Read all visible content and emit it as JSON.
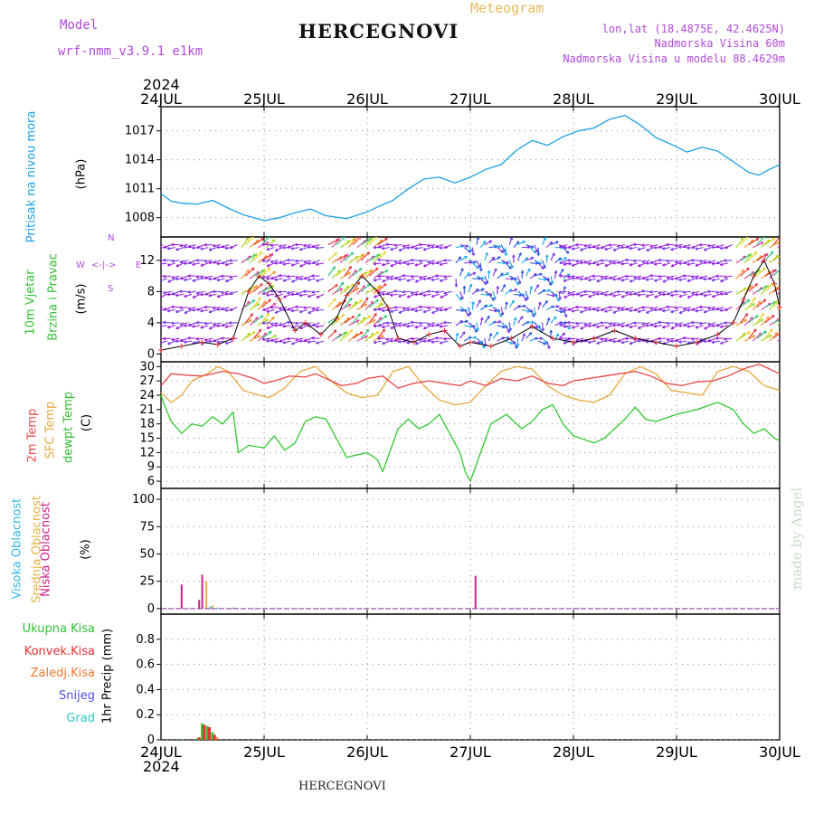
{
  "header": {
    "title": "HERCEGNOVI",
    "model_label": "Model",
    "model_name": "wrf-nmm_v3.9.1 e1km",
    "meteogram": "Meteogram",
    "lonlat": "lon,lat (18.4875E, 42.4625N)",
    "altitude": "Nadmorska Visina 60m",
    "model_altitude": "Nadmorska Visina u modelu 88.4629m"
  },
  "footer": {
    "location": "HERCEGNOVI",
    "credit": "made by Angel"
  },
  "time_axis": {
    "year": "2024",
    "days": [
      "24JUL",
      "25JUL",
      "26JUL",
      "27JUL",
      "28JUL",
      "29JUL",
      "30JUL"
    ]
  },
  "panels": {
    "pressure": {
      "label": "Pritisak na nivou mora",
      "unit": "(hPa)"
    },
    "wind": {
      "label1": "10m Vjetar",
      "label2": "Brzina i Pravac",
      "unit": "(m/s)",
      "compass": {
        "n": "N",
        "w": "W",
        "e": "E",
        "s": "S",
        "arrows": "<-|->"
      }
    },
    "temp": {
      "label1": "2m Temp",
      "label2": "SFC Temp",
      "label3": "dewpt Temp",
      "unit": "(C)"
    },
    "cloud": {
      "label1": "Visoka Oblacnost",
      "label2": "Srednja Oblacnost",
      "label3": "Niska Oblacnost",
      "unit": "(%)"
    },
    "precip": {
      "unit": "1hr Precip (mm)",
      "legend": [
        "Ukupna Kisa",
        "Konvek.Kisa",
        "Zaledj.Kisa",
        "Snijeg",
        "Grad"
      ]
    }
  },
  "colors": {
    "pressure": "#1ca0e6",
    "temp2m": "#e84848",
    "sfc": "#e8a840",
    "dewpt": "#30c830",
    "high_cloud": "#30b8e8",
    "mid_cloud": "#e8b040",
    "low_cloud": "#c8208a",
    "total_rain": "#30c030",
    "conv_rain": "#e83030",
    "frz_rain": "#f07830",
    "snow": "#5050e0",
    "graupel": "#30c8c8",
    "label_purple": "#b04ad8"
  },
  "chart_data": [
    {
      "type": "line",
      "name": "pressure",
      "ylim": [
        1006,
        1019.5
      ],
      "yticks": [
        1008,
        1011,
        1014,
        1017
      ],
      "xlim": [
        0,
        6
      ],
      "series": [
        {
          "name": "",
          "x": [
            0,
            0.1,
            0.2,
            0.35,
            0.5,
            0.65,
            0.8,
            1.0,
            1.15,
            1.3,
            1.45,
            1.6,
            1.8,
            2.0,
            2.1,
            2.25,
            2.4,
            2.55,
            2.7,
            2.85,
            3.0,
            3.15,
            3.3,
            3.45,
            3.6,
            3.75,
            3.9,
            4.05,
            4.2,
            4.35,
            4.5,
            4.65,
            4.8,
            4.95,
            5.1,
            5.25,
            5.4,
            5.55,
            5.7,
            5.8,
            5.9,
            6.0
          ],
          "values": [
            1010.5,
            1009.7,
            1009.5,
            1009.4,
            1009.8,
            1009.0,
            1008.3,
            1007.7,
            1008.0,
            1008.5,
            1008.9,
            1008.2,
            1007.9,
            1008.6,
            1009.1,
            1009.8,
            1011.0,
            1012.0,
            1012.2,
            1011.6,
            1012.2,
            1013.0,
            1013.5,
            1015.0,
            1016.0,
            1015.5,
            1016.4,
            1017.0,
            1017.3,
            1018.2,
            1018.6,
            1017.6,
            1016.3,
            1015.6,
            1014.8,
            1015.3,
            1014.9,
            1013.8,
            1012.7,
            1012.4,
            1013.0,
            1013.5
          ]
        }
      ]
    },
    {
      "type": "line",
      "name": "wind",
      "ylim": [
        -1,
        15
      ],
      "yticks": [
        0,
        4,
        8,
        12
      ],
      "xlim": [
        0,
        6
      ],
      "series": [
        {
          "name": "",
          "x": [
            0,
            0.2,
            0.4,
            0.55,
            0.7,
            0.85,
            0.95,
            1.05,
            1.15,
            1.3,
            1.4,
            1.55,
            1.7,
            1.8,
            1.95,
            2.1,
            2.2,
            2.3,
            2.45,
            2.6,
            2.75,
            2.9,
            3.0,
            3.2,
            3.4,
            3.6,
            3.8,
            4.0,
            4.2,
            4.4,
            4.6,
            4.8,
            5.0,
            5.2,
            5.4,
            5.55,
            5.65,
            5.75,
            5.85,
            5.95,
            6.0
          ],
          "values": [
            0.5,
            1.0,
            1.5,
            1.2,
            2.0,
            8.0,
            10.0,
            9.0,
            7.0,
            3.0,
            4.0,
            2.5,
            4.5,
            7.5,
            10.0,
            8.0,
            6.0,
            2.0,
            1.5,
            2.5,
            3.0,
            1.0,
            1.5,
            1.0,
            2.0,
            3.5,
            2.0,
            1.5,
            2.0,
            3.0,
            2.0,
            1.5,
            1.0,
            1.5,
            2.5,
            4.0,
            7.0,
            10.0,
            12.0,
            9.0,
            6.0
          ]
        }
      ]
    },
    {
      "type": "line",
      "name": "temperature",
      "ylim": [
        4.5,
        31
      ],
      "yticks": [
        6,
        9,
        12,
        15,
        18,
        21,
        24,
        27,
        30
      ],
      "xlim": [
        0,
        6
      ],
      "series": [
        {
          "name": "2m Temp",
          "x": [
            0,
            0.1,
            0.25,
            0.4,
            0.5,
            0.6,
            0.75,
            0.9,
            1.0,
            1.1,
            1.25,
            1.4,
            1.5,
            1.6,
            1.75,
            1.9,
            2.0,
            2.15,
            2.3,
            2.45,
            2.6,
            2.75,
            2.9,
            3.0,
            3.15,
            3.3,
            3.45,
            3.6,
            3.75,
            3.9,
            4.0,
            4.15,
            4.3,
            4.45,
            4.6,
            4.75,
            4.9,
            5.05,
            5.2,
            5.35,
            5.5,
            5.65,
            5.8,
            5.9,
            6.0
          ],
          "values": [
            26,
            28.5,
            28.2,
            28.0,
            28.5,
            29.0,
            28.5,
            27.5,
            26.5,
            27.0,
            28.0,
            27.8,
            28.5,
            27.5,
            26.0,
            26.5,
            27.5,
            28.0,
            25.5,
            26.5,
            27.0,
            26.5,
            26.0,
            27.0,
            26.0,
            27.5,
            27.0,
            28.0,
            26.5,
            26.0,
            27.0,
            27.5,
            28.0,
            28.5,
            29.0,
            28.0,
            26.5,
            26.0,
            26.8,
            27.0,
            28.0,
            29.5,
            30.5,
            29.5,
            28.5
          ]
        },
        {
          "name": "SFC Temp",
          "x": [
            0,
            0.1,
            0.2,
            0.3,
            0.45,
            0.55,
            0.65,
            0.8,
            0.95,
            1.05,
            1.2,
            1.35,
            1.5,
            1.65,
            1.8,
            1.95,
            2.1,
            2.25,
            2.4,
            2.55,
            2.7,
            2.85,
            3.0,
            3.15,
            3.3,
            3.45,
            3.6,
            3.75,
            3.9,
            4.05,
            4.2,
            4.35,
            4.5,
            4.65,
            4.8,
            4.95,
            5.1,
            5.25,
            5.4,
            5.55,
            5.7,
            5.85,
            6.0
          ],
          "values": [
            24.5,
            22.5,
            24.0,
            27.0,
            28.5,
            30.0,
            29.0,
            25.0,
            24.0,
            23.5,
            25.5,
            29.0,
            30.0,
            27.0,
            24.5,
            23.5,
            24.0,
            29.0,
            30.0,
            26.0,
            23.0,
            22.0,
            22.5,
            26.0,
            29.0,
            30.0,
            29.5,
            26.0,
            24.0,
            23.0,
            22.5,
            24.0,
            28.5,
            30.0,
            28.5,
            25.0,
            24.5,
            24.0,
            29.0,
            30.0,
            29.0,
            26.0,
            25.0
          ]
        },
        {
          "name": "dewpt Temp",
          "x": [
            0,
            0.05,
            0.1,
            0.2,
            0.3,
            0.4,
            0.5,
            0.6,
            0.7,
            0.75,
            0.85,
            1.0,
            1.1,
            1.2,
            1.3,
            1.4,
            1.5,
            1.6,
            1.7,
            1.8,
            1.9,
            2.0,
            2.1,
            2.15,
            2.2,
            2.3,
            2.4,
            2.5,
            2.6,
            2.7,
            2.8,
            2.9,
            2.95,
            3.0,
            3.1,
            3.2,
            3.35,
            3.5,
            3.6,
            3.7,
            3.8,
            3.9,
            4.0,
            4.2,
            4.3,
            4.4,
            4.5,
            4.6,
            4.7,
            4.8,
            5.0,
            5.2,
            5.4,
            5.55,
            5.65,
            5.75,
            5.85,
            5.95,
            6.0
          ],
          "values": [
            24.0,
            21.0,
            18.5,
            16.0,
            18.0,
            17.5,
            19.5,
            18.0,
            20.5,
            12.0,
            13.5,
            13.0,
            15.5,
            12.5,
            14.0,
            18.5,
            19.5,
            19.0,
            15.0,
            11.0,
            11.5,
            12.0,
            10.5,
            8.0,
            11.0,
            17.0,
            19.0,
            17.0,
            18.0,
            20.0,
            16.0,
            12.0,
            8.0,
            6.0,
            12.0,
            18.0,
            20.0,
            17.0,
            18.5,
            21.0,
            22.0,
            18.0,
            15.5,
            14.0,
            15.0,
            17.0,
            19.0,
            21.5,
            19.0,
            18.5,
            20.0,
            21.0,
            22.5,
            21.0,
            18.0,
            16.0,
            17.0,
            15.0,
            14.5
          ]
        }
      ]
    },
    {
      "type": "bar",
      "name": "cloud",
      "ylim": [
        -5,
        110
      ],
      "yticks": [
        0,
        25,
        50,
        75,
        100
      ],
      "xlim": [
        0,
        6
      ],
      "series": [
        {
          "name": "Niska Oblacnost",
          "x": [
            0.2,
            0.37,
            0.4,
            3.05
          ],
          "values": [
            22,
            8,
            31,
            30
          ]
        },
        {
          "name": "Srednja Oblacnost",
          "x": [
            0.44,
            0.5
          ],
          "values": [
            25,
            3
          ]
        },
        {
          "name": "Visoka Oblacnost",
          "x": [
            0.48,
            0.55,
            0.7
          ],
          "values": [
            2,
            1,
            1
          ]
        }
      ]
    },
    {
      "type": "bar",
      "name": "precip",
      "ylim": [
        0,
        1.0
      ],
      "yticks": [
        0,
        0.2,
        0.4,
        0.6,
        0.8
      ],
      "xlim": [
        0,
        6
      ],
      "series": [
        {
          "name": "Ukupna Kisa",
          "x": [
            0.2,
            0.35,
            0.4,
            0.45,
            0.5
          ],
          "values": [
            0.005,
            0.01,
            0.13,
            0.11,
            0.06
          ]
        },
        {
          "name": "Konvek.Kisa",
          "x": [
            0.37,
            0.42,
            0.47,
            0.52
          ],
          "values": [
            0.02,
            0.12,
            0.1,
            0.04
          ]
        },
        {
          "name": "Zaledj.Kisa",
          "x": [
            0.54
          ],
          "values": [
            0.02
          ]
        }
      ]
    }
  ]
}
